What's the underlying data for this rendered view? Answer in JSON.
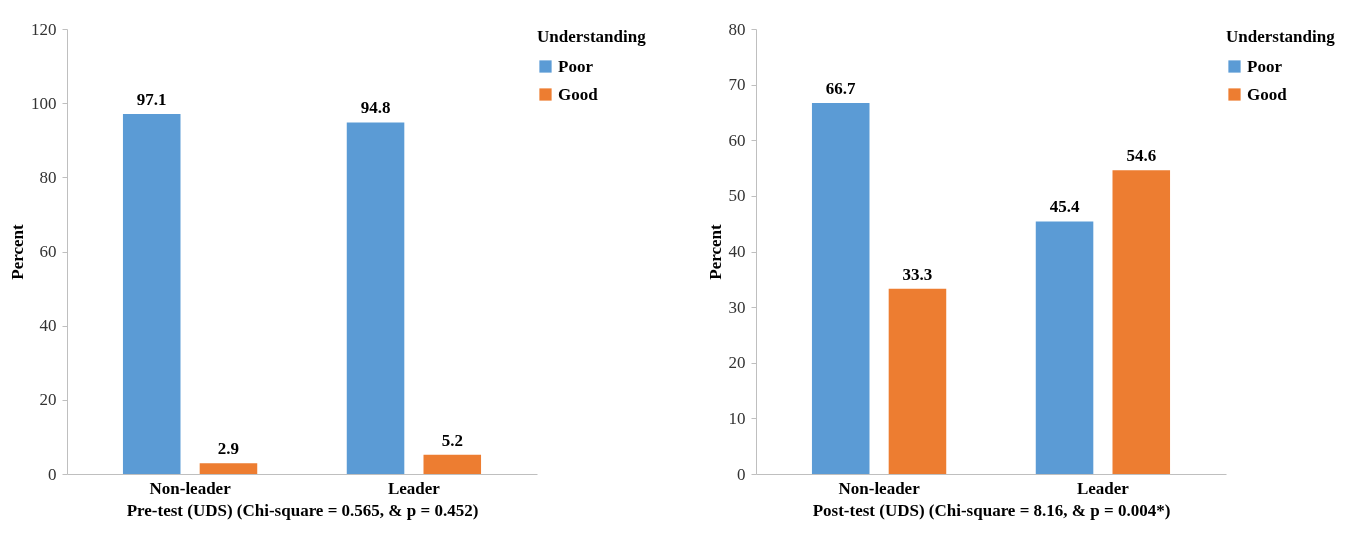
{
  "chart_data": [
    {
      "type": "bar",
      "xlabel": "Pre-test (UDS) (Chi-square = 0.565, & p = 0.452)",
      "ylabel": "Percent",
      "legend_title": "Understanding",
      "legend": "right",
      "grid": false,
      "data_labels": true,
      "categories": [
        "Non-leader",
        "Leader"
      ],
      "ylim": [
        0,
        120
      ],
      "yticks": [
        0,
        20,
        40,
        60,
        80,
        100,
        120
      ],
      "series": [
        {
          "name": "Poor",
          "color": "#5b9bd5",
          "values": [
            97.1,
            94.8
          ]
        },
        {
          "name": "Good",
          "color": "#ed7d31",
          "values": [
            2.9,
            5.2
          ]
        }
      ]
    },
    {
      "type": "bar",
      "xlabel": "Post-test (UDS) (Chi-square = 8.16, & p = 0.004*)",
      "ylabel": "Percent",
      "legend_title": "Understanding",
      "legend": "right",
      "grid": false,
      "data_labels": true,
      "categories": [
        "Non-leader",
        "Leader"
      ],
      "ylim": [
        0,
        80
      ],
      "yticks": [
        0,
        10,
        20,
        30,
        40,
        50,
        60,
        70,
        80
      ],
      "series": [
        {
          "name": "Poor",
          "color": "#5b9bd5",
          "values": [
            66.7,
            45.4
          ]
        },
        {
          "name": "Good",
          "color": "#ed7d31",
          "values": [
            33.3,
            54.6
          ]
        }
      ]
    }
  ]
}
